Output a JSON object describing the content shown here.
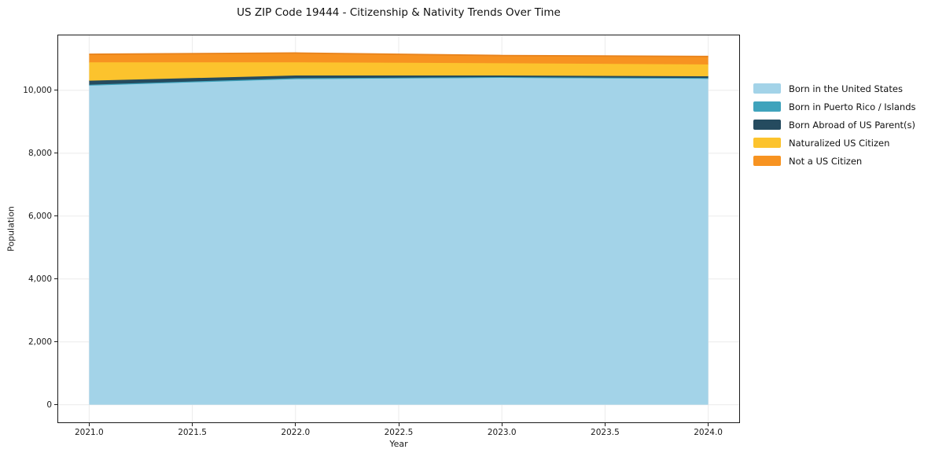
{
  "page_title": "US ZIP Code 19444 - Citizenship & Nativity Trends Over Time",
  "chart_data": {
    "type": "area",
    "stacked": true,
    "title": "US ZIP Code 19444 - Citizenship & Nativity Trends Over Time",
    "xlabel": "Year",
    "ylabel": "Population",
    "x": [
      2021,
      2022,
      2023,
      2024
    ],
    "series": [
      {
        "name": "Born in the United States",
        "color": "#A3D3E8",
        "values": [
          10150,
          10360,
          10400,
          10370
        ]
      },
      {
        "name": "Born in Puerto Rico / Islands",
        "color": "#3FA3BC",
        "values": [
          30,
          30,
          25,
          25
        ]
      },
      {
        "name": "Born Abroad of US Parent(s)",
        "color": "#254B5F",
        "values": [
          130,
          85,
          50,
          55
        ]
      },
      {
        "name": "Naturalized US Citizen",
        "color": "#FCC32D",
        "values": [
          585,
          420,
          390,
          375
        ]
      },
      {
        "name": "Not a US Citizen",
        "color": "#F79321",
        "edge": "#E8831C",
        "values": [
          255,
          295,
          245,
          255
        ]
      }
    ],
    "xlim": [
      2020.85,
      2024.15
    ],
    "ylim": [
      -560,
      11750
    ],
    "x_ticks": [
      2021.0,
      2021.5,
      2022.0,
      2022.5,
      2023.0,
      2023.5,
      2024.0
    ],
    "x_tick_labels": [
      "2021.0",
      "2021.5",
      "2022.0",
      "2022.5",
      "2023.0",
      "2023.5",
      "2024.0"
    ],
    "y_ticks": [
      0,
      2000,
      4000,
      6000,
      8000,
      10000
    ],
    "y_tick_labels": [
      "0",
      "2,000",
      "4,000",
      "6,000",
      "8,000",
      "10,000"
    ],
    "grid": true,
    "grid_color": "#ebebeb",
    "spine_color": "#1a1a1a",
    "legend_position": "right-outside-top"
  }
}
